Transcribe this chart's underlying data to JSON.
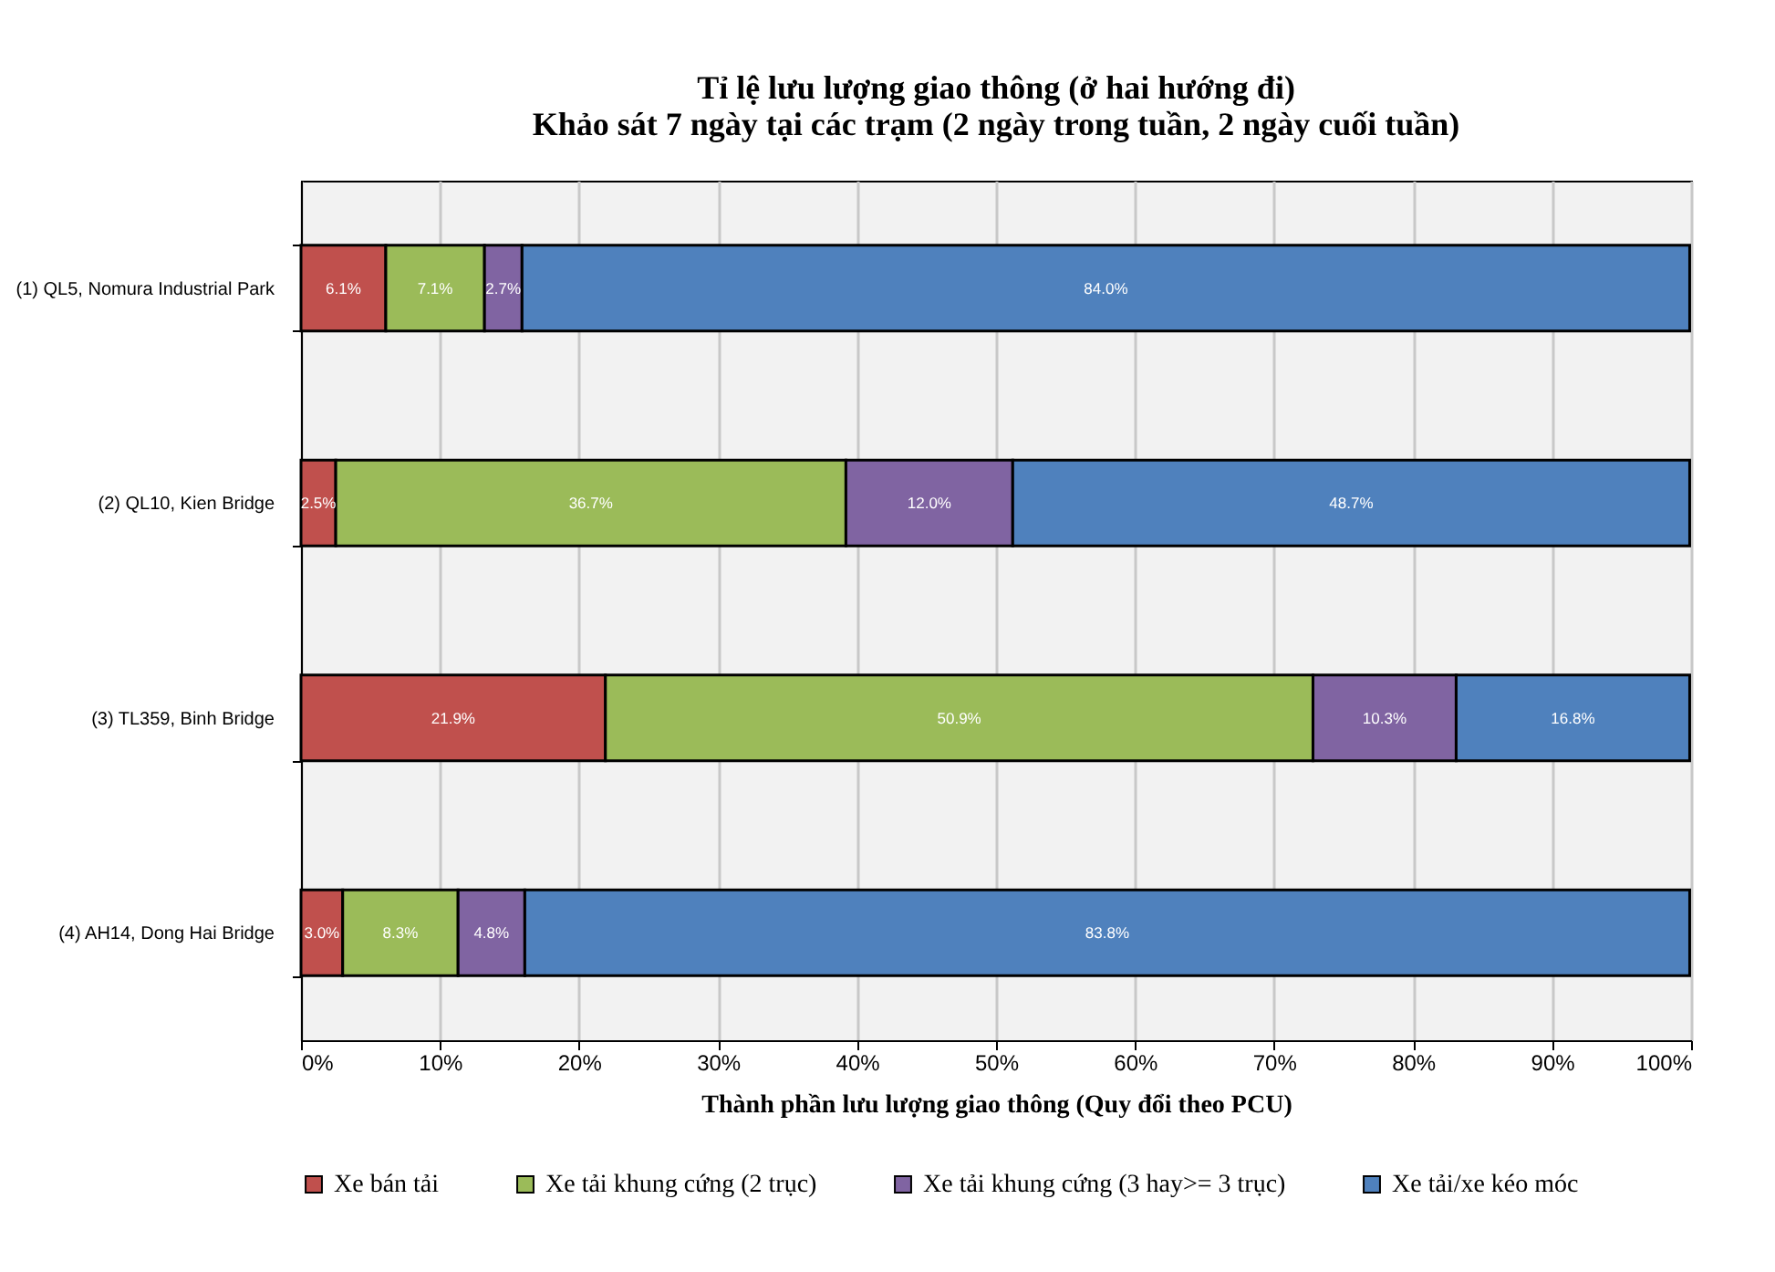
{
  "chart_data": {
    "type": "bar",
    "orientation": "horizontal",
    "stacked": true,
    "title": "Tỉ lệ lưu lượng giao thông (ở hai hướng đi)\nKhảo sát 7 ngày tại các trạm (2 ngày trong tuần, 2 ngày cuối tuần)",
    "xlabel": "Thành phần lưu lượng giao thông (Quy đổi theo PCU)",
    "categories": [
      "(1) QL5, Nomura Industrial Park",
      "(2) QL10, Kien Bridge",
      "(3) TL359, Binh Bridge",
      "(4) AH14, Dong Hai Bridge"
    ],
    "series": [
      {
        "name": "Xe bán tải",
        "color": "#c0504d",
        "values": [
          6.1,
          2.5,
          21.9,
          3.0
        ],
        "value_labels": [
          "6.1%",
          "2.5%",
          "21.9%",
          "3.0%"
        ]
      },
      {
        "name": "Xe tải khung cứng (2 trục)",
        "color": "#9bbb59",
        "values": [
          7.1,
          36.7,
          50.9,
          8.3
        ],
        "value_labels": [
          "7.1%",
          "36.7%",
          "50.9%",
          "8.3%"
        ]
      },
      {
        "name": "Xe tải khung cứng (3 hay>= 3 trục)",
        "color": "#8064a2",
        "values": [
          2.7,
          12.0,
          10.3,
          4.8
        ],
        "value_labels": [
          "2.7%",
          "12.0%",
          "10.3%",
          "4.8%"
        ]
      },
      {
        "name": "Xe tải/xe kéo móc",
        "color": "#4f81bd",
        "values": [
          84.0,
          48.7,
          16.8,
          83.8
        ],
        "value_labels": [
          "84.0%",
          "48.7%",
          "16.8%",
          "83.8%"
        ]
      }
    ],
    "xlim": [
      0,
      100
    ],
    "xticks": [
      {
        "value": 0,
        "label": "0%"
      },
      {
        "value": 10,
        "label": "10%"
      },
      {
        "value": 20,
        "label": "20%"
      },
      {
        "value": 30,
        "label": "30%"
      },
      {
        "value": 40,
        "label": "40%"
      },
      {
        "value": 50,
        "label": "50%"
      },
      {
        "value": 60,
        "label": "60%"
      },
      {
        "value": 70,
        "label": "70%"
      },
      {
        "value": 80,
        "label": "80%"
      },
      {
        "value": 90,
        "label": "90%"
      },
      {
        "value": 100,
        "label": "100%"
      }
    ],
    "grid": "x",
    "legend": "bottom"
  }
}
